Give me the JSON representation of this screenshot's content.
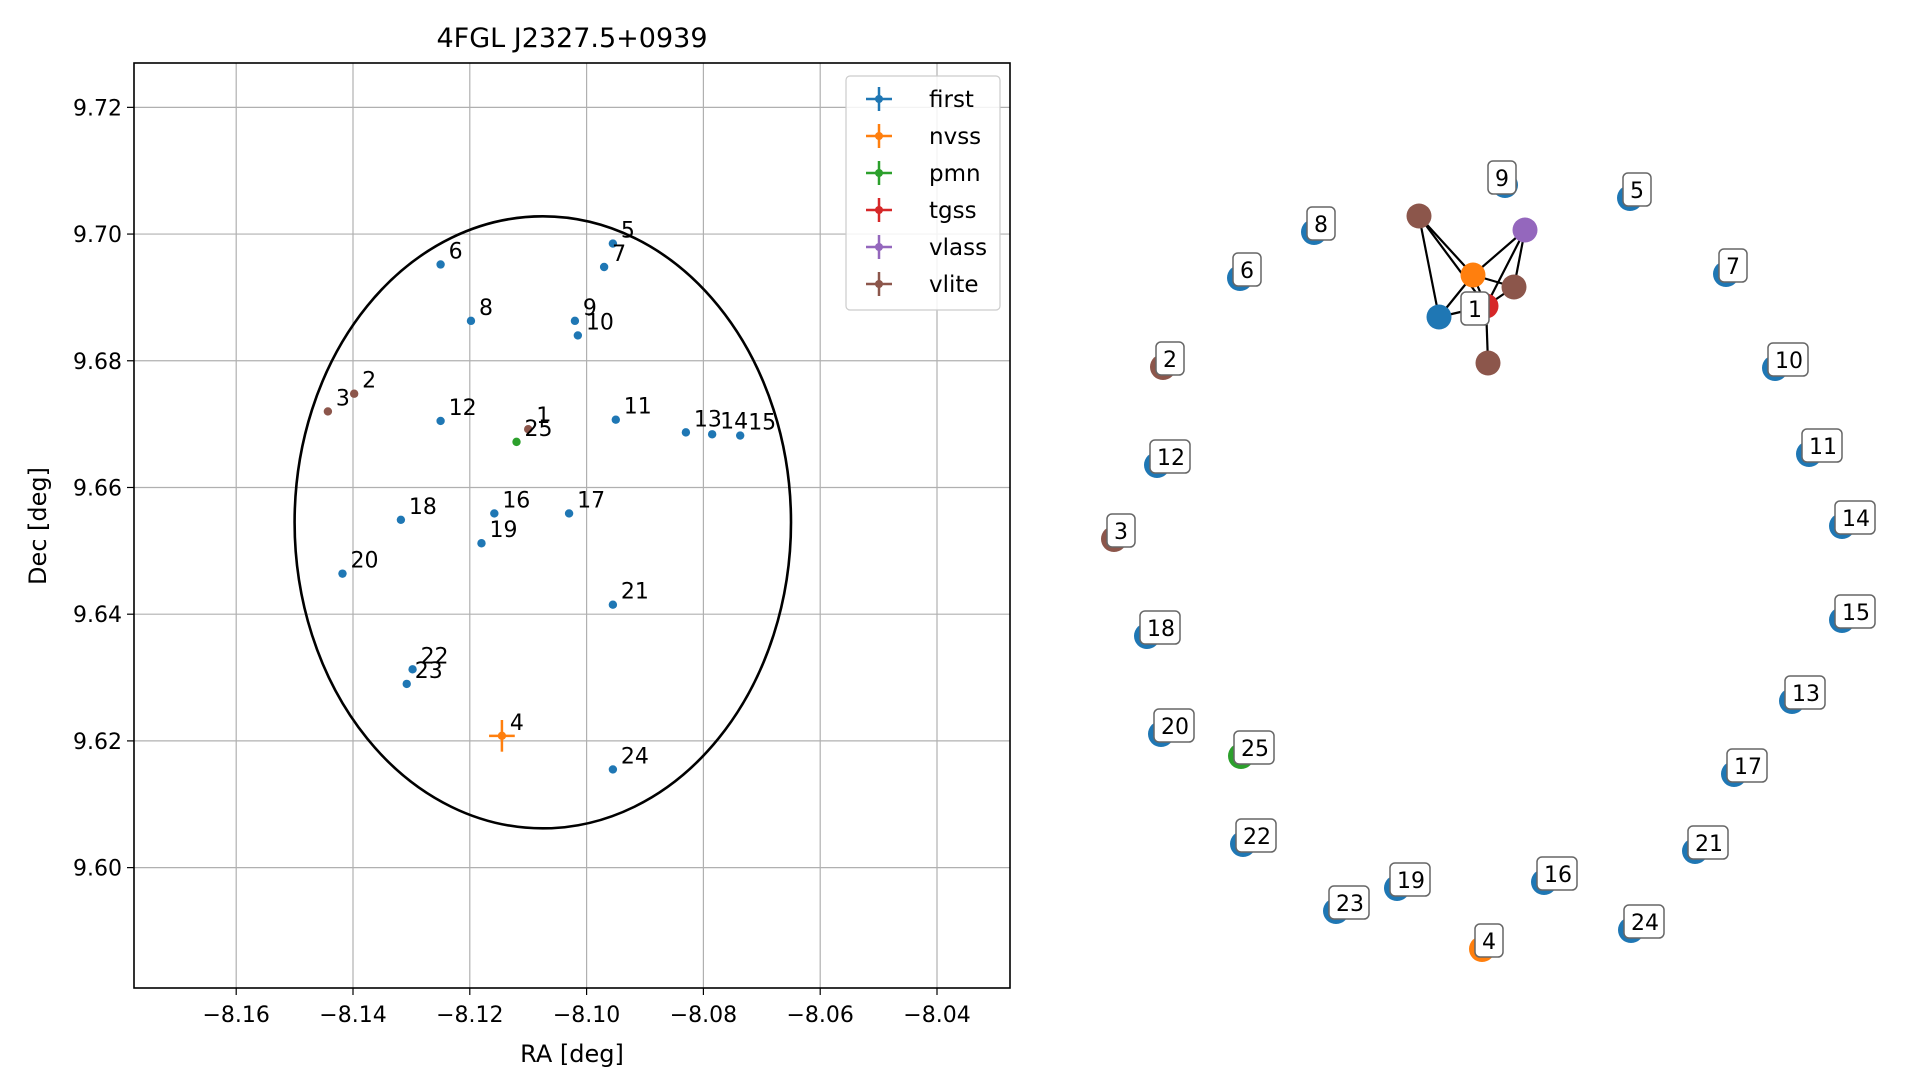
{
  "chart_data": [
    {
      "type": "scatter",
      "title": "4FGL J2327.5+0939",
      "xlabel": "RA [deg]",
      "ylabel": "Dec [deg]",
      "xlim": [
        -8.1775,
        -8.0275
      ],
      "ylim": [
        9.581,
        9.727
      ],
      "xticks": [
        -8.16,
        -8.14,
        -8.12,
        -8.1,
        -8.08,
        -8.06,
        -8.04
      ],
      "xtick_labels": [
        "−8.16",
        "−8.14",
        "−8.12",
        "−8.10",
        "−8.08",
        "−8.06",
        "−8.04"
      ],
      "yticks": [
        9.6,
        9.62,
        9.64,
        9.66,
        9.68,
        9.7,
        9.72
      ],
      "ytick_labels": [
        "9.60",
        "9.62",
        "9.64",
        "9.66",
        "9.68",
        "9.70",
        "9.72"
      ],
      "grid": true,
      "legend_position": "top-right",
      "ellipse": {
        "center": [
          -8.1075,
          9.6545
        ],
        "semi_axis_ra": 0.0425,
        "semi_axis_dec": 0.0483,
        "color": "#000000"
      },
      "series": [
        {
          "name": "first",
          "color": "#1f77b4",
          "points": [
            {
              "label": "5",
              "ra": -8.0955,
              "dec": 9.6985
            },
            {
              "label": "6",
              "ra": -8.125,
              "dec": 9.6952
            },
            {
              "label": "7",
              "ra": -8.097,
              "dec": 9.6948
            },
            {
              "label": "8",
              "ra": -8.1198,
              "dec": 9.6863
            },
            {
              "label": "9",
              "ra": -8.102,
              "dec": 9.6863
            },
            {
              "label": "10",
              "ra": -8.1015,
              "dec": 9.684
            },
            {
              "label": "11",
              "ra": -8.095,
              "dec": 9.6707
            },
            {
              "label": "12",
              "ra": -8.125,
              "dec": 9.6705
            },
            {
              "label": "13",
              "ra": -8.083,
              "dec": 9.6687
            },
            {
              "label": "14",
              "ra": -8.0785,
              "dec": 9.6684
            },
            {
              "label": "15",
              "ra": -8.0737,
              "dec": 9.6682
            },
            {
              "label": "16",
              "ra": -8.1158,
              "dec": 9.6559
            },
            {
              "label": "17",
              "ra": -8.103,
              "dec": 9.6559
            },
            {
              "label": "18",
              "ra": -8.1318,
              "dec": 9.6549
            },
            {
              "label": "19",
              "ra": -8.118,
              "dec": 9.6512
            },
            {
              "label": "20",
              "ra": -8.1418,
              "dec": 9.6464
            },
            {
              "label": "21",
              "ra": -8.0955,
              "dec": 9.6415
            },
            {
              "label": "22",
              "ra": -8.1298,
              "dec": 9.6313
            },
            {
              "label": "23",
              "ra": -8.1308,
              "dec": 9.629
            },
            {
              "label": "24",
              "ra": -8.0955,
              "dec": 9.6155
            }
          ]
        },
        {
          "name": "nvss",
          "color": "#ff7f0e",
          "points": [
            {
              "label": "4",
              "ra": -8.1145,
              "dec": 9.6208,
              "err_ra": 0.0022,
              "err_dec": 0.0025
            }
          ]
        },
        {
          "name": "pmn",
          "color": "#2ca02c",
          "points": [
            {
              "label": "25",
              "ra": -8.112,
              "dec": 9.6672
            }
          ]
        },
        {
          "name": "tgss",
          "color": "#d62728",
          "points": []
        },
        {
          "name": "vlass",
          "color": "#9467bd",
          "points": []
        },
        {
          "name": "vlite",
          "color": "#8c564b",
          "points": [
            {
              "label": "1",
              "ra": -8.11,
              "dec": 9.6692
            },
            {
              "label": "2",
              "ra": -8.1398,
              "dec": 9.6748
            },
            {
              "label": "3",
              "ra": -8.1443,
              "dec": 9.672
            }
          ]
        }
      ]
    },
    {
      "type": "network",
      "nodes": [
        {
          "label": "1",
          "color": "#1f77b4",
          "lx": 1468,
          "ly": 317
        },
        {
          "label": "2",
          "color": "#8c564b",
          "lx": 1163,
          "ly": 367
        },
        {
          "label": "3",
          "color": "#8c564b",
          "lx": 1114,
          "ly": 539
        },
        {
          "label": "4",
          "color": "#ff7f0e",
          "lx": 1482,
          "ly": 949
        },
        {
          "label": "5",
          "color": "#1f77b4",
          "lx": 1630,
          "ly": 198
        },
        {
          "label": "6",
          "color": "#1f77b4",
          "lx": 1240,
          "ly": 278
        },
        {
          "label": "7",
          "color": "#1f77b4",
          "lx": 1726,
          "ly": 274
        },
        {
          "label": "8",
          "color": "#1f77b4",
          "lx": 1314,
          "ly": 232
        },
        {
          "label": "9",
          "color": "#1f77b4",
          "lx": 1495,
          "ly": 186
        },
        {
          "label": "10",
          "color": "#1f77b4",
          "lx": 1775,
          "ly": 368
        },
        {
          "label": "11",
          "color": "#1f77b4",
          "lx": 1809,
          "ly": 454
        },
        {
          "label": "12",
          "color": "#1f77b4",
          "lx": 1157,
          "ly": 465
        },
        {
          "label": "13",
          "color": "#1f77b4",
          "lx": 1792,
          "ly": 701
        },
        {
          "label": "14",
          "color": "#1f77b4",
          "lx": 1842,
          "ly": 526
        },
        {
          "label": "15",
          "color": "#1f77b4",
          "lx": 1842,
          "ly": 620
        },
        {
          "label": "16",
          "color": "#1f77b4",
          "lx": 1544,
          "ly": 882
        },
        {
          "label": "17",
          "color": "#1f77b4",
          "lx": 1734,
          "ly": 774
        },
        {
          "label": "18",
          "color": "#1f77b4",
          "lx": 1147,
          "ly": 636
        },
        {
          "label": "19",
          "color": "#1f77b4",
          "lx": 1397,
          "ly": 888
        },
        {
          "label": "20",
          "color": "#1f77b4",
          "lx": 1161,
          "ly": 734
        },
        {
          "label": "21",
          "color": "#1f77b4",
          "lx": 1695,
          "ly": 851
        },
        {
          "label": "22",
          "color": "#1f77b4",
          "lx": 1243,
          "ly": 844
        },
        {
          "label": "23",
          "color": "#1f77b4",
          "lx": 1336,
          "ly": 911
        },
        {
          "label": "24",
          "color": "#1f77b4",
          "lx": 1631,
          "ly": 930
        },
        {
          "label": "25",
          "color": "#2ca02c",
          "lx": 1241,
          "ly": 756
        }
      ],
      "cluster": [
        {
          "color": "#1f77b4",
          "ref": "1"
        },
        {
          "color": "#ff7f0e"
        },
        {
          "color": "#d62728"
        },
        {
          "color": "#9467bd"
        },
        {
          "color": "#8c564b"
        },
        {
          "color": "#8c564b"
        },
        {
          "color": "#8c564b"
        }
      ]
    }
  ]
}
